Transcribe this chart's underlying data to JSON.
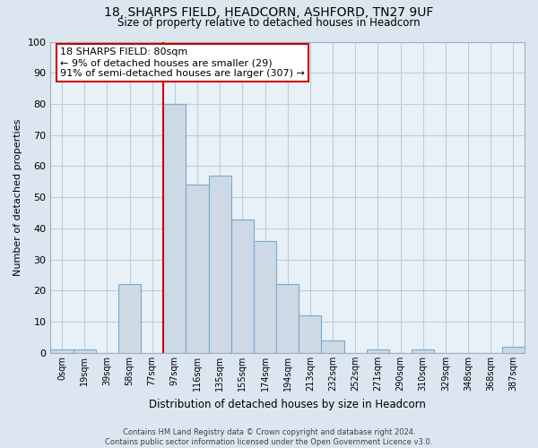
{
  "title": "18, SHARPS FIELD, HEADCORN, ASHFORD, TN27 9UF",
  "subtitle": "Size of property relative to detached houses in Headcorn",
  "xlabel": "Distribution of detached houses by size in Headcorn",
  "ylabel": "Number of detached properties",
  "bar_labels": [
    "0sqm",
    "19sqm",
    "39sqm",
    "58sqm",
    "77sqm",
    "97sqm",
    "116sqm",
    "135sqm",
    "155sqm",
    "174sqm",
    "194sqm",
    "213sqm",
    "232sqm",
    "252sqm",
    "271sqm",
    "290sqm",
    "310sqm",
    "329sqm",
    "348sqm",
    "368sqm",
    "387sqm"
  ],
  "bar_values": [
    1,
    1,
    0,
    22,
    0,
    80,
    54,
    57,
    43,
    36,
    22,
    12,
    4,
    0,
    1,
    0,
    1,
    0,
    0,
    0,
    2
  ],
  "bar_color": "#cdd9e5",
  "bar_edge_color": "#7aaac8",
  "marker_line_color": "#cc0000",
  "annotation_line1": "18 SHARPS FIELD: 80sqm",
  "annotation_line2": "← 9% of detached houses are smaller (29)",
  "annotation_line3": "91% of semi-detached houses are larger (307) →",
  "annotation_box_color": "#ffffff",
  "annotation_box_edge": "#cc0000",
  "ylim": [
    0,
    100
  ],
  "yticks": [
    0,
    10,
    20,
    30,
    40,
    50,
    60,
    70,
    80,
    90,
    100
  ],
  "footnote": "Contains HM Land Registry data © Crown copyright and database right 2024.\nContains public sector information licensed under the Open Government Licence v3.0.",
  "bg_color": "#dce6f0",
  "plot_bg_color": "#e8f0f8",
  "grid_color": "#c0ccd8"
}
